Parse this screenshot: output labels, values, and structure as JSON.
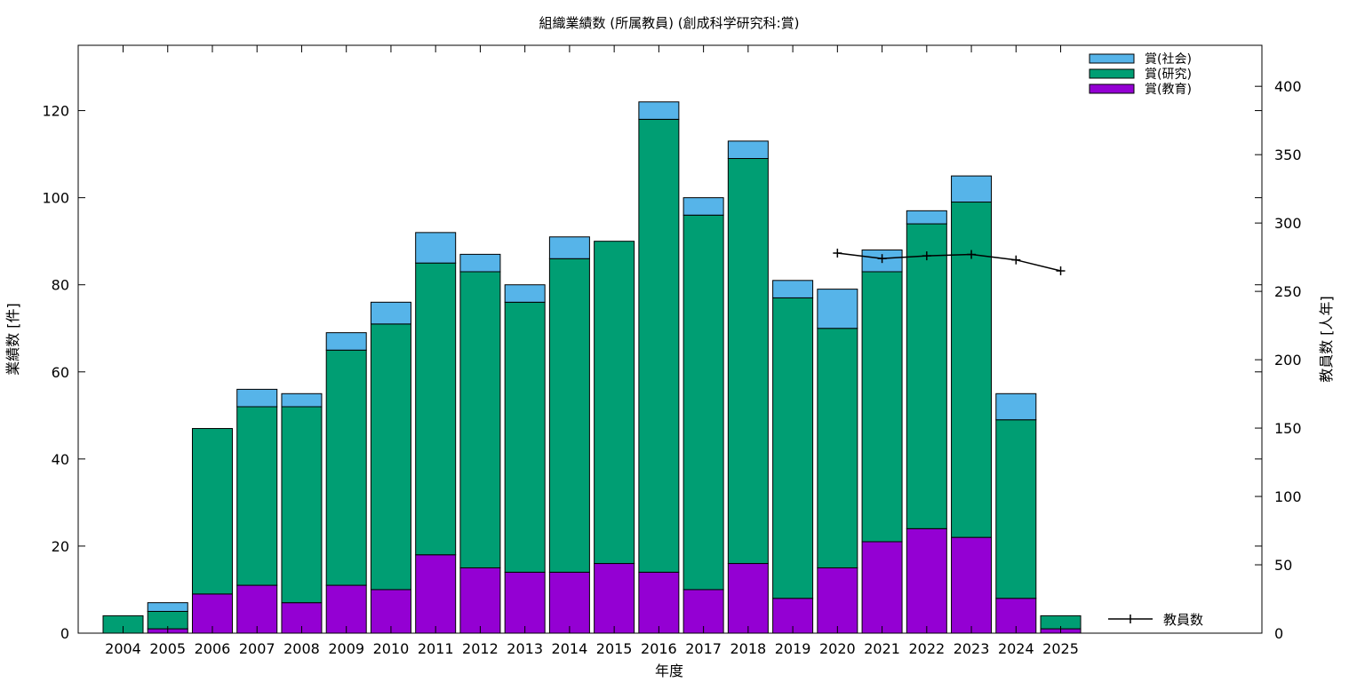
{
  "chart_data": {
    "type": "bar",
    "stacked": true,
    "title": "組織業績数 (所属教員) (創成科学研究科:賞)",
    "xlabel": "年度",
    "ylabel": "業績数 [件]",
    "y2label": "教員数 [人年]",
    "categories": [
      "2004",
      "2005",
      "2006",
      "2007",
      "2008",
      "2009",
      "2010",
      "2011",
      "2012",
      "2013",
      "2014",
      "2015",
      "2016",
      "2017",
      "2018",
      "2019",
      "2020",
      "2021",
      "2022",
      "2023",
      "2024",
      "2025"
    ],
    "ylim": [
      0,
      135
    ],
    "y2lim": [
      0,
      430
    ],
    "yticks": [
      0,
      20,
      40,
      60,
      80,
      100,
      120
    ],
    "y2ticks": [
      0,
      50,
      100,
      150,
      200,
      250,
      300,
      350,
      400
    ],
    "grid": false,
    "legend_position": "top-right",
    "series": [
      {
        "name": "賞(教育)",
        "color": "#9400d3",
        "values": [
          0,
          1,
          9,
          11,
          7,
          11,
          10,
          18,
          15,
          14,
          14,
          16,
          14,
          10,
          16,
          8,
          15,
          21,
          24,
          22,
          8,
          1
        ]
      },
      {
        "name": "賞(研究)",
        "color": "#009e73",
        "values": [
          4,
          4,
          38,
          41,
          45,
          54,
          61,
          67,
          68,
          62,
          72,
          74,
          104,
          86,
          93,
          69,
          55,
          62,
          70,
          77,
          41,
          3
        ]
      },
      {
        "name": "賞(社会)",
        "color": "#56b4e9",
        "values": [
          0,
          2,
          0,
          4,
          3,
          4,
          5,
          7,
          4,
          4,
          5,
          0,
          4,
          4,
          4,
          4,
          9,
          5,
          3,
          6,
          6,
          0
        ]
      }
    ],
    "line_series": {
      "name": "教員数",
      "color": "#000000",
      "axis": "y2",
      "x": [
        "2020",
        "2021",
        "2022",
        "2023",
        "2024",
        "2025"
      ],
      "values": [
        278,
        274,
        276,
        277,
        273,
        265
      ]
    },
    "legend_order": [
      "賞(社会)",
      "賞(研究)",
      "賞(教育)"
    ]
  }
}
